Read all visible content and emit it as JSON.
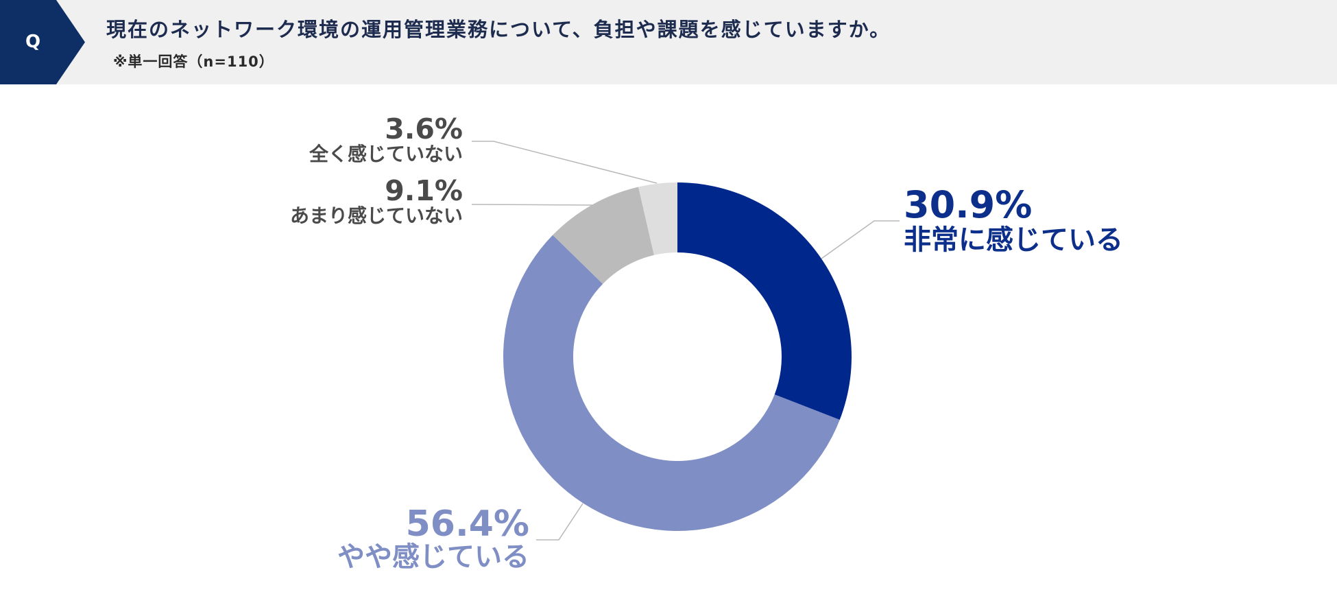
{
  "header": {
    "badge": "Q",
    "question": "現在のネットワーク環境の運用管理業務について、負担や課題を感じていますか。",
    "note": "※単一回答（n=110）"
  },
  "colors": {
    "header_bg": "#f0f0f1",
    "badge_bg": "#0e2f66",
    "leader_line": "#b8b8b8"
  },
  "chart_data": {
    "type": "pie",
    "variant": "donut",
    "title": "",
    "slices": [
      {
        "label": "非常に感じている",
        "value": 30.9,
        "value_text": "30.9%",
        "color": "#00288c"
      },
      {
        "label": "やや感じている",
        "value": 56.4,
        "value_text": "56.4%",
        "color": "#7f8ec4"
      },
      {
        "label": "あまり感じていない",
        "value": 9.1,
        "value_text": "9.1%",
        "color": "#bbbbbb"
      },
      {
        "label": "全く感じていない",
        "value": 3.6,
        "value_text": "3.6%",
        "color": "#dedede"
      }
    ],
    "label_text_colors": [
      "#0d2f8c",
      "#7f8ec4",
      "#4a4a4a",
      "#4a4a4a"
    ],
    "legend": "none"
  }
}
